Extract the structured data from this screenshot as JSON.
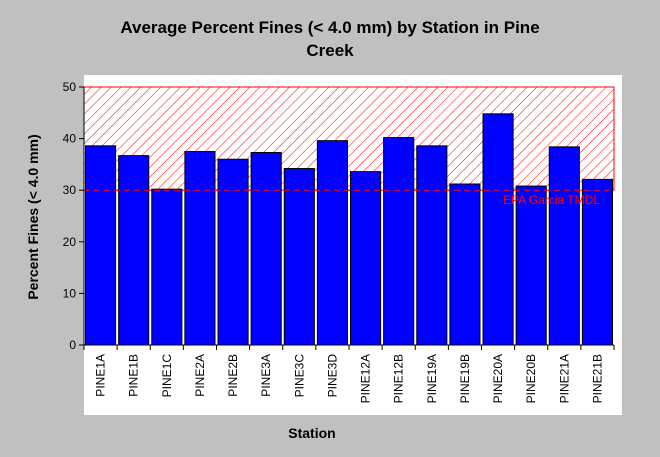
{
  "chart_data": {
    "type": "bar",
    "title_lines": [
      "Average Percent Fines (< 4.0 mm) by Station in Pine",
      "Creek"
    ],
    "xlabel": "Station",
    "ylabel": "Percent Fines (< 4.0 mm)",
    "ylim": [
      0,
      50
    ],
    "yticks": [
      "0",
      "10",
      "20",
      "30",
      "40",
      "50"
    ],
    "categories": [
      "PINE1A",
      "PINE1B",
      "PINE1C",
      "PINE2A",
      "PINE2B",
      "PINE3A",
      "PINE3C",
      "PINE3D",
      "PINE12A",
      "PINE12B",
      "PINE19A",
      "PINE19B",
      "PINE20A",
      "PINE20B",
      "PINE21A",
      "PINE21B"
    ],
    "values": [
      38.6,
      36.7,
      30.2,
      37.5,
      36.0,
      37.3,
      34.2,
      39.6,
      33.6,
      40.2,
      38.6,
      31.2,
      44.8,
      30.8,
      38.4,
      32.1
    ],
    "bar_color": "#0000ff",
    "reference": {
      "label": "EPA Garcia TMDL",
      "y": 30,
      "band": [
        30,
        50
      ],
      "color": "#ff0000"
    },
    "grid": false,
    "legend": "none"
  }
}
